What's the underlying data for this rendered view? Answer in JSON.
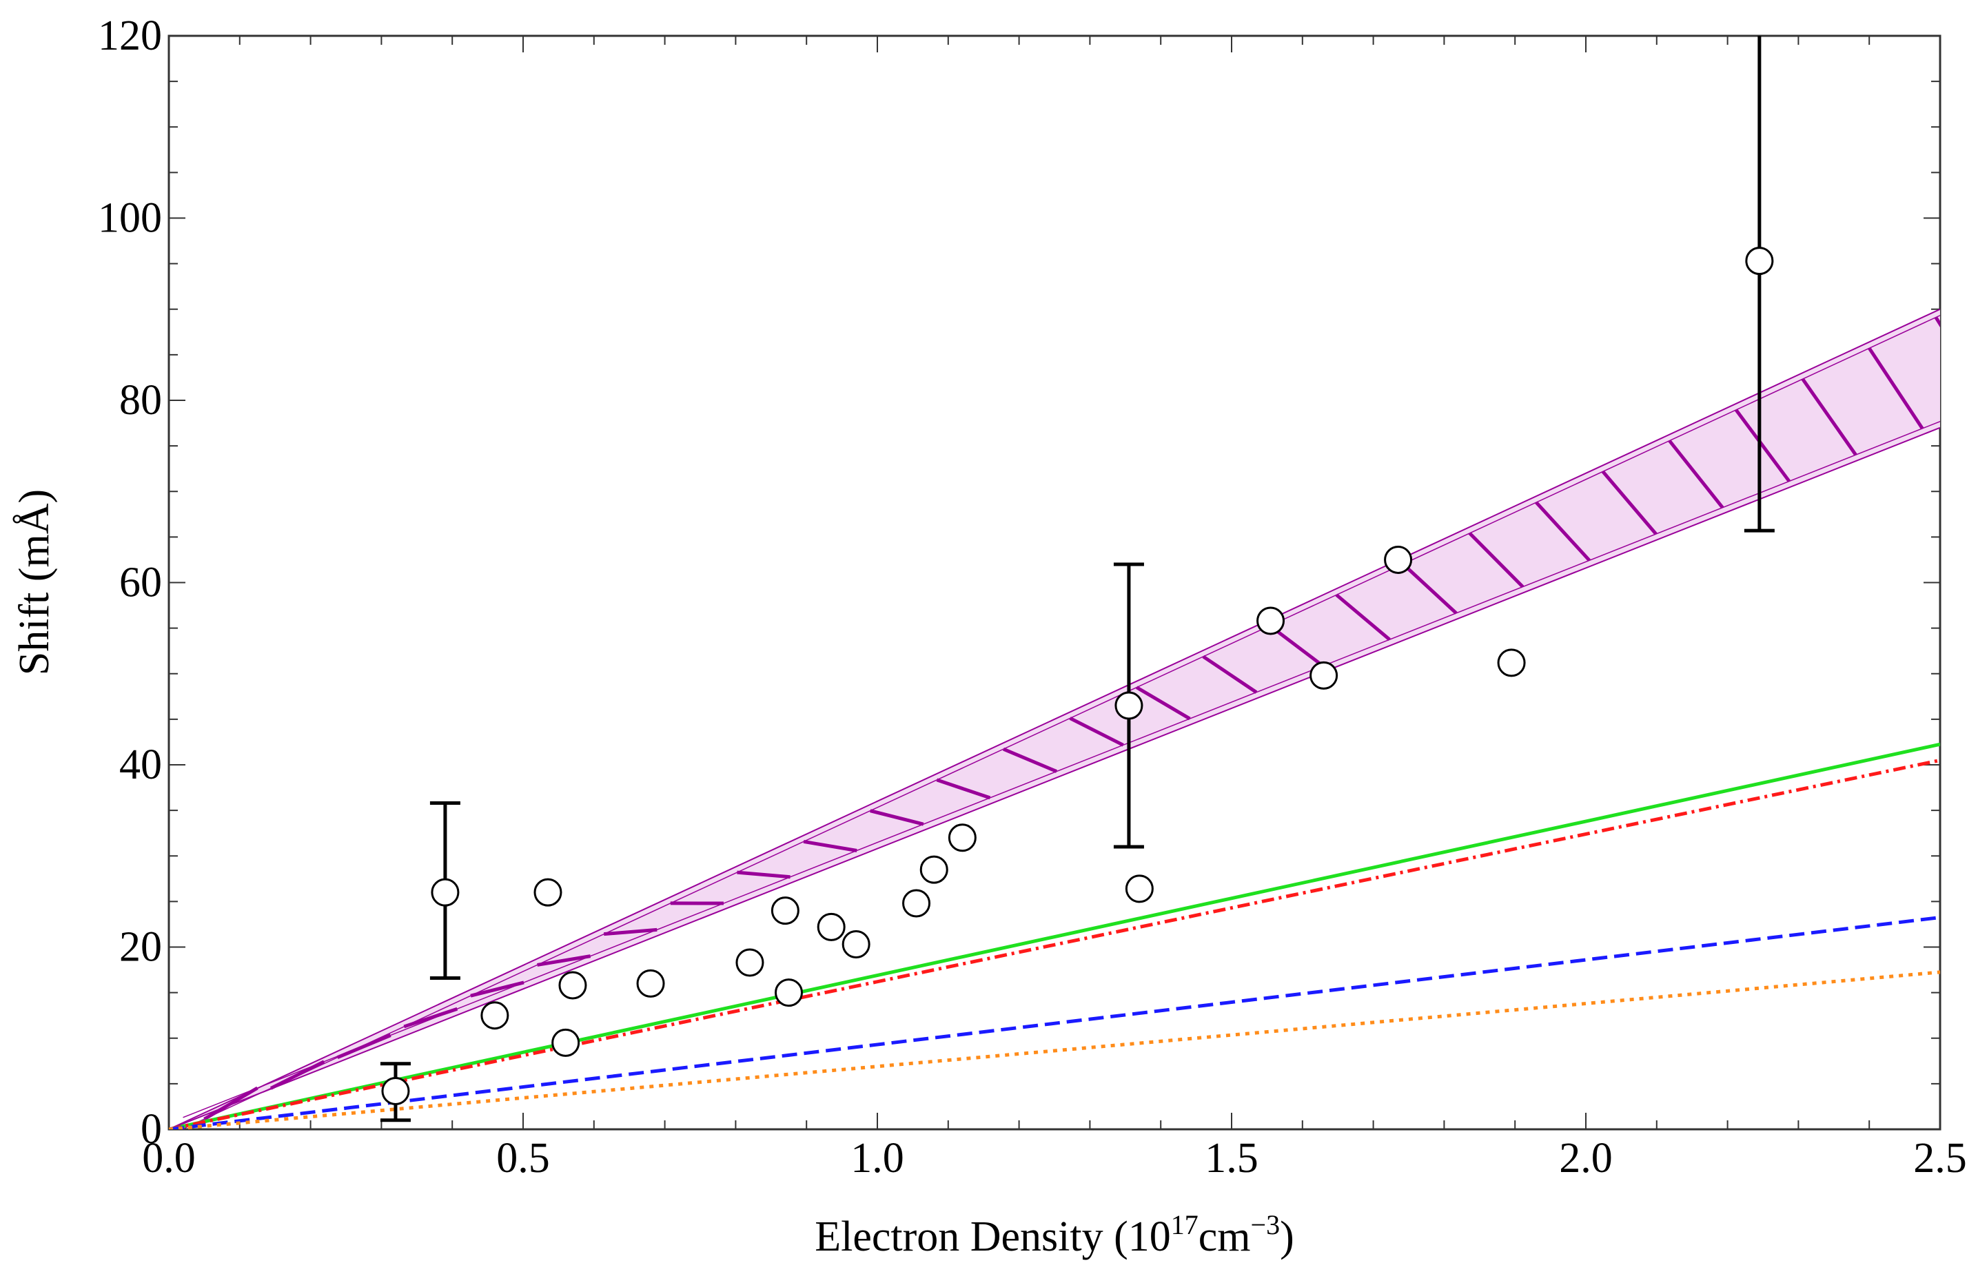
{
  "chart_data": {
    "type": "scatter",
    "xlabel": {
      "main": "Electron Density (10",
      "exp1": "17",
      "unit": "cm",
      "exp2": "−3",
      "close": ")"
    },
    "ylabel": "Shift (mÅ)",
    "xlim": [
      0,
      2.5
    ],
    "ylim": [
      0,
      120
    ],
    "xticks": [
      0.0,
      0.5,
      1.0,
      1.5,
      2.0,
      2.5
    ],
    "xtick_labels": [
      "0.0",
      "0.5",
      "1.0",
      "1.5",
      "2.0",
      "2.5"
    ],
    "yticks": [
      0,
      20,
      40,
      60,
      80,
      100,
      120
    ],
    "ytick_labels": [
      "0",
      "20",
      "40",
      "60",
      "80",
      "100",
      "120"
    ],
    "band": {
      "name": "hatched-band",
      "color": "#990099",
      "upper_slope": 36.0,
      "lower_slope": 30.8
    },
    "lines": [
      {
        "name": "green-solid",
        "slope": 16.9,
        "color": "#1fe01f",
        "style": "solid"
      },
      {
        "name": "red-dash-dot",
        "slope": 16.2,
        "color": "#ff1a1a",
        "style": "dashdot"
      },
      {
        "name": "blue-dashed",
        "slope": 9.3,
        "color": "#1a1aff",
        "style": "dashed"
      },
      {
        "name": "orange-dotted",
        "slope": 6.9,
        "color": "#ff8c1a",
        "style": "dotted"
      }
    ],
    "points": [
      {
        "x": 0.32,
        "y": 4.2,
        "err": [
          1.0,
          7.2
        ]
      },
      {
        "x": 0.39,
        "y": 26.0,
        "err": [
          16.6,
          35.8
        ]
      },
      {
        "x": 0.46,
        "y": 12.5
      },
      {
        "x": 0.535,
        "y": 26.0
      },
      {
        "x": 0.56,
        "y": 9.5
      },
      {
        "x": 0.57,
        "y": 15.8
      },
      {
        "x": 0.68,
        "y": 16.0
      },
      {
        "x": 0.82,
        "y": 18.3
      },
      {
        "x": 0.87,
        "y": 24.0
      },
      {
        "x": 0.875,
        "y": 15.0
      },
      {
        "x": 0.935,
        "y": 22.2
      },
      {
        "x": 0.97,
        "y": 20.3
      },
      {
        "x": 1.055,
        "y": 24.8
      },
      {
        "x": 1.08,
        "y": 28.5
      },
      {
        "x": 1.12,
        "y": 32.0
      },
      {
        "x": 1.355,
        "y": 46.5,
        "err": [
          31.0,
          62.0
        ]
      },
      {
        "x": 1.37,
        "y": 26.4
      },
      {
        "x": 1.555,
        "y": 55.8
      },
      {
        "x": 1.63,
        "y": 49.8
      },
      {
        "x": 1.735,
        "y": 62.5
      },
      {
        "x": 1.895,
        "y": 51.2
      },
      {
        "x": 2.245,
        "y": 95.3,
        "err": [
          65.7,
          120.0
        ]
      }
    ]
  }
}
